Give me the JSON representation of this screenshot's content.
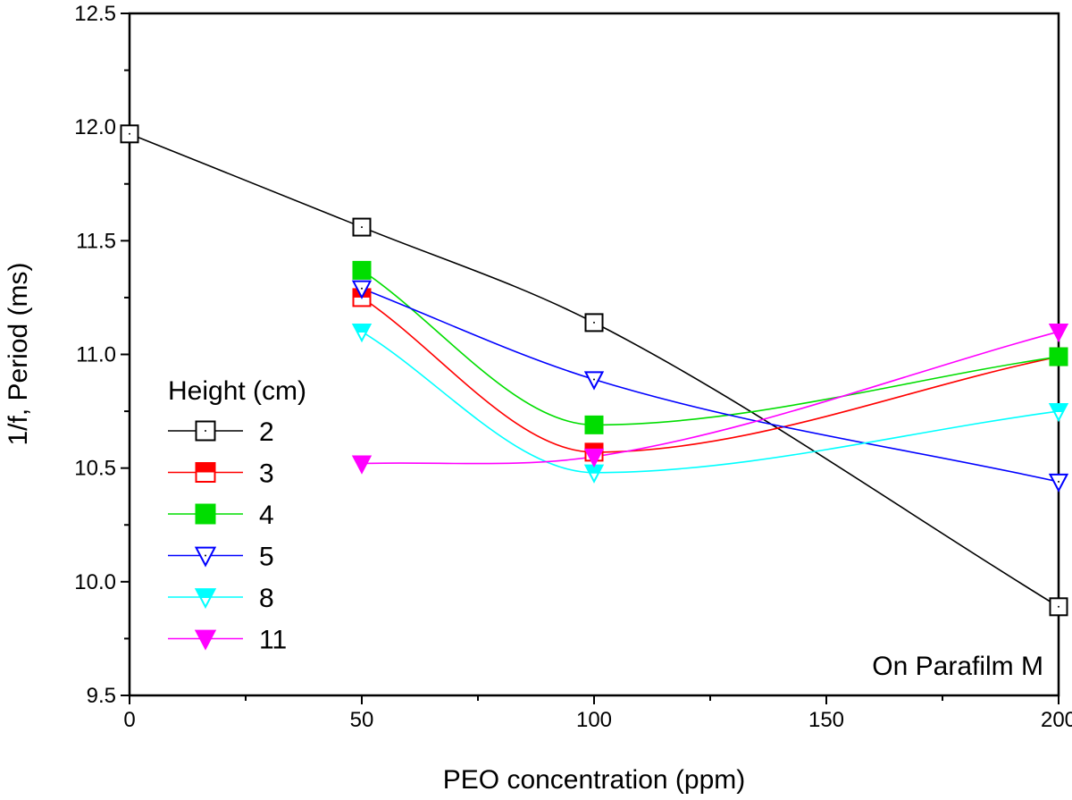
{
  "chart_data": {
    "type": "scatter",
    "xlabel": "PEO concentration (ppm)",
    "ylabel": "1/f, Period (ms)",
    "xlim": [
      0,
      200
    ],
    "ylim": [
      9.5,
      12.5
    ],
    "x_ticks": [
      "0",
      "50",
      "100",
      "150",
      "200"
    ],
    "y_ticks": [
      "9.5",
      "10.0",
      "10.5",
      "11.0",
      "11.5",
      "12.0",
      "12.5"
    ],
    "grid": false,
    "annotation": "On Parafilm M",
    "legend": {
      "title": "Height (cm)",
      "position": "middle-left"
    },
    "series": [
      {
        "name": "2",
        "color": "#000000",
        "marker": "square-open",
        "points": [
          [
            0,
            11.97
          ],
          [
            50,
            11.56
          ],
          [
            100,
            11.14
          ],
          [
            200,
            9.89
          ]
        ]
      },
      {
        "name": "3",
        "color": "#ff0000",
        "marker": "square-half",
        "points": [
          [
            50,
            11.25
          ],
          [
            100,
            10.57
          ],
          [
            200,
            10.99
          ]
        ]
      },
      {
        "name": "4",
        "color": "#00dd00",
        "marker": "square-filled",
        "points": [
          [
            50,
            11.37
          ],
          [
            100,
            10.69
          ],
          [
            200,
            10.99
          ]
        ]
      },
      {
        "name": "5",
        "color": "#0000ff",
        "marker": "triangle-down-open",
        "points": [
          [
            50,
            11.29
          ],
          [
            100,
            10.89
          ],
          [
            200,
            10.44
          ]
        ]
      },
      {
        "name": "8",
        "color": "#00ffff",
        "marker": "triangle-down-half",
        "points": [
          [
            50,
            11.1
          ],
          [
            100,
            10.48
          ],
          [
            200,
            10.75
          ]
        ]
      },
      {
        "name": "11",
        "color": "#ff00ff",
        "marker": "triangle-down-filled",
        "points": [
          [
            50,
            10.52
          ],
          [
            100,
            10.55
          ],
          [
            200,
            11.1
          ]
        ]
      }
    ]
  }
}
